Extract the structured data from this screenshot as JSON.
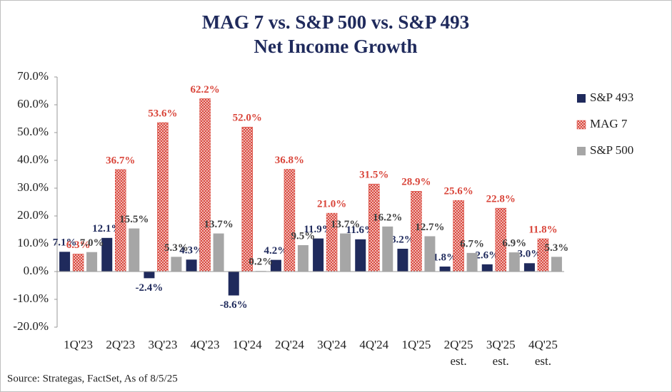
{
  "chart_data": {
    "type": "bar",
    "title": "MAG 7 vs. S&P 500 vs. S&P 493",
    "subtitle": "Net Income Growth",
    "source": "Source: Strategas, FactSet, As of 8/5/25",
    "categories": [
      "1Q'23",
      "2Q'23",
      "3Q'23",
      "4Q'23",
      "1Q'24",
      "2Q'24",
      "3Q'24",
      "4Q'24",
      "1Q'25",
      [
        "2Q'25",
        "est."
      ],
      [
        "3Q'25",
        "est."
      ],
      [
        "4Q'25",
        "est."
      ]
    ],
    "series": [
      {
        "name": "S&P 493",
        "color": "#1f2a5c",
        "label_color": "#1f2a5c",
        "values": [
          7.1,
          12.1,
          -2.4,
          4.3,
          -8.6,
          4.2,
          11.9,
          11.6,
          8.2,
          1.8,
          2.6,
          3.0
        ],
        "value_labels": [
          "7.1%",
          "12.1%",
          "-2.4%",
          "4.3%",
          "-8.6%",
          "4.2%",
          "11.9%",
          "11.6%",
          "8.2%",
          "1.8%",
          "2.6%",
          "3.0%"
        ]
      },
      {
        "name": "MAG 7",
        "color": "#d9453a",
        "label_color": "#d9453a",
        "hatch": true,
        "values": [
          6.3,
          36.7,
          53.6,
          62.2,
          52.0,
          36.8,
          21.0,
          31.5,
          28.9,
          25.6,
          22.8,
          11.8
        ],
        "value_labels": [
          "6.3%",
          "36.7%",
          "53.6%",
          "62.2%",
          "52.0%",
          "36.8%",
          "21.0%",
          "31.5%",
          "28.9%",
          "25.6%",
          "22.8%",
          "11.8%"
        ]
      },
      {
        "name": "S&P 500",
        "color": "#a6a6a6",
        "label_color": "#404040",
        "values": [
          7.0,
          15.5,
          5.3,
          13.7,
          0.2,
          9.5,
          13.7,
          16.2,
          12.7,
          6.7,
          6.9,
          5.3
        ],
        "value_labels": [
          "7.0%",
          "15.5%",
          "5.3%",
          "13.7%",
          "0.2%",
          "9.5%",
          "13.7%",
          "16.2%",
          "12.7%",
          "6.7%",
          "6.9%",
          "5.3%"
        ]
      }
    ],
    "ylim": [
      -20,
      70
    ],
    "yticks": [
      {
        "value": -20,
        "label": "-20.0%"
      },
      {
        "value": -10,
        "label": "-10.0%"
      },
      {
        "value": 0,
        "label": "0.0%"
      },
      {
        "value": 10,
        "label": "10.0%"
      },
      {
        "value": 20,
        "label": "20.0%"
      },
      {
        "value": 30,
        "label": "30.0%"
      },
      {
        "value": 40,
        "label": "40.0%"
      },
      {
        "value": 50,
        "label": "50.0%"
      },
      {
        "value": 60,
        "label": "60.0%"
      },
      {
        "value": 70,
        "label": "70.0%"
      }
    ],
    "legend": "right"
  }
}
